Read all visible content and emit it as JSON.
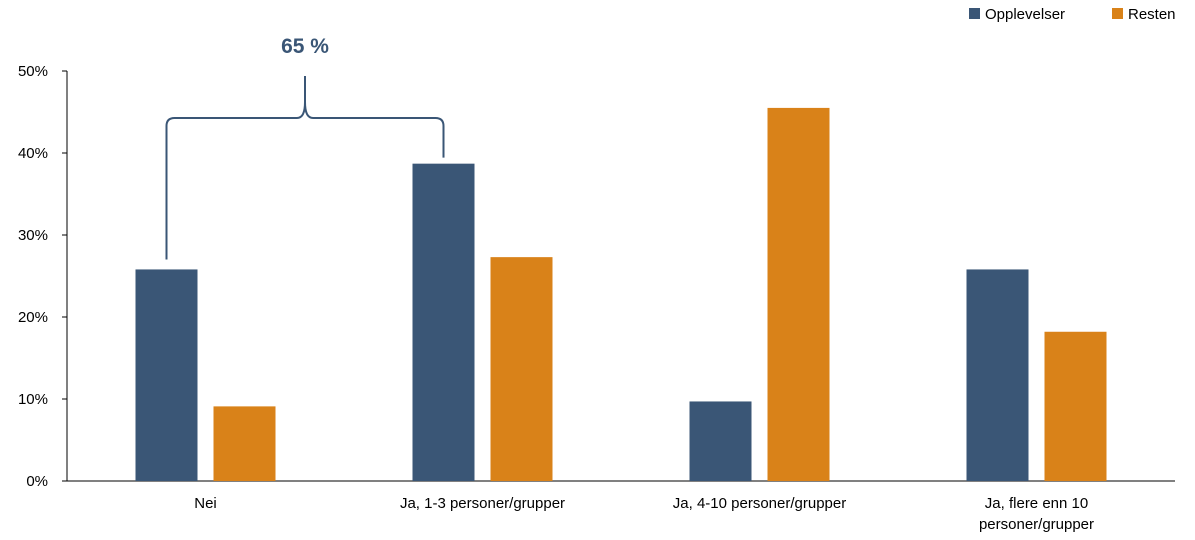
{
  "chart_data": {
    "type": "bar",
    "title": "",
    "xlabel": "",
    "ylabel": "",
    "categories": [
      [
        "Nei"
      ],
      [
        "Ja, 1-3 personer/grupper"
      ],
      [
        "Ja, 4-10 personer/grupper"
      ],
      [
        "Ja, flere enn 10",
        "personer/grupper"
      ]
    ],
    "series": [
      {
        "name": "Opplevelser",
        "color": "#3A5676",
        "values": [
          0.258,
          0.387,
          0.097,
          0.258
        ]
      },
      {
        "name": "Resten",
        "color": "#D98219",
        "values": [
          0.091,
          0.273,
          0.455,
          0.182
        ]
      }
    ],
    "ylim": [
      0,
      0.5
    ],
    "yticks": [
      0,
      0.1,
      0.2,
      0.3,
      0.4,
      0.5
    ],
    "ytick_labels": [
      "0%",
      "10%",
      "20%",
      "30%",
      "40%",
      "50%"
    ],
    "grid": false,
    "legend_position": "top-right",
    "annotation": {
      "text": "65 %",
      "color": "#3A5676",
      "spans_categories": [
        "Nei",
        "Ja, 1-3 personer/grupper"
      ]
    }
  }
}
